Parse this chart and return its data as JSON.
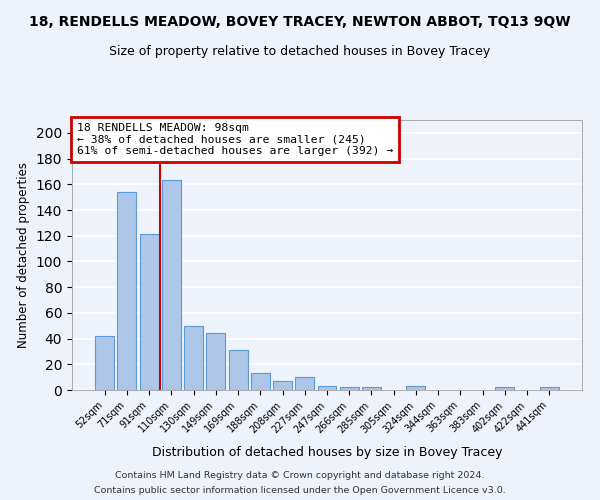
{
  "title": "18, RENDELLS MEADOW, BOVEY TRACEY, NEWTON ABBOT, TQ13 9QW",
  "subtitle": "Size of property relative to detached houses in Bovey Tracey",
  "xlabel": "Distribution of detached houses by size in Bovey Tracey",
  "ylabel": "Number of detached properties",
  "bar_labels": [
    "52sqm",
    "71sqm",
    "91sqm",
    "110sqm",
    "130sqm",
    "149sqm",
    "169sqm",
    "188sqm",
    "208sqm",
    "227sqm",
    "247sqm",
    "266sqm",
    "285sqm",
    "305sqm",
    "324sqm",
    "344sqm",
    "363sqm",
    "383sqm",
    "402sqm",
    "422sqm",
    "441sqm"
  ],
  "bar_values": [
    42,
    154,
    121,
    163,
    50,
    44,
    31,
    13,
    7,
    10,
    3,
    2,
    2,
    0,
    3,
    0,
    0,
    0,
    2,
    0,
    2
  ],
  "bar_color": "#aec6e8",
  "bar_edge_color": "#5b9bd5",
  "ylim": [
    0,
    210
  ],
  "yticks": [
    0,
    20,
    40,
    60,
    80,
    100,
    120,
    140,
    160,
    180,
    200
  ],
  "vline_bin_index": 2,
  "annotation_text_line1": "18 RENDELLS MEADOW: 98sqm",
  "annotation_text_line2": "← 38% of detached houses are smaller (245)",
  "annotation_text_line3": "61% of semi-detached houses are larger (392) →",
  "annotation_box_color": "#ffffff",
  "annotation_box_edge_color": "#cc0000",
  "vline_color": "#cc0000",
  "background_color": "#eef2fb",
  "grid_color": "#ffffff",
  "footer_line1": "Contains HM Land Registry data © Crown copyright and database right 2024.",
  "footer_line2": "Contains public sector information licensed under the Open Government Licence v3.0."
}
